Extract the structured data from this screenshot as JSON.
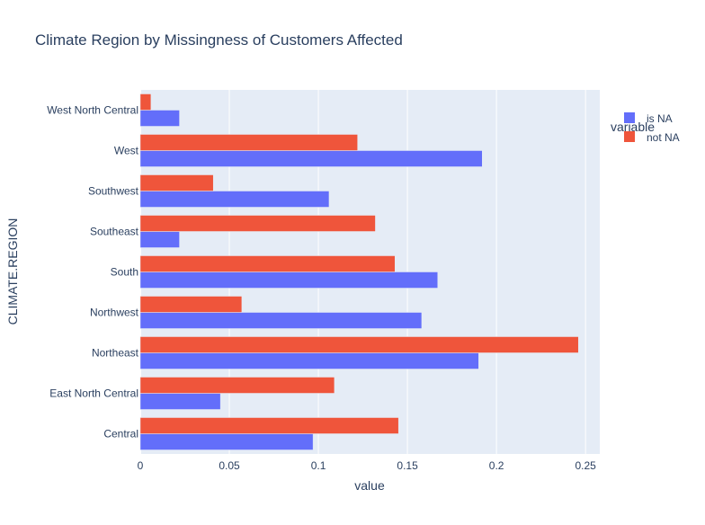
{
  "chart_data": {
    "type": "bar",
    "orientation": "horizontal",
    "barmode": "group",
    "title": "Climate Region by Missingness of Customers Affected",
    "xlabel": "value",
    "ylabel": "CLIMATE.REGION",
    "xlim": [
      0,
      0.258
    ],
    "xticks": [
      0,
      0.05,
      0.1,
      0.15,
      0.2,
      0.25
    ],
    "xtick_labels": [
      "0",
      "0.05",
      "0.1",
      "0.15",
      "0.2",
      "0.25"
    ],
    "grid": true,
    "legend": {
      "title": "variable",
      "position": "top-right"
    },
    "categories": [
      "Central",
      "East North Central",
      "Northeast",
      "Northwest",
      "South",
      "Southeast",
      "Southwest",
      "West",
      "West North Central"
    ],
    "series": [
      {
        "name": "is NA",
        "color": "#636efa",
        "values": [
          0.097,
          0.045,
          0.19,
          0.158,
          0.167,
          0.022,
          0.106,
          0.192,
          0.022
        ]
      },
      {
        "name": "not NA",
        "color": "#ef553b",
        "values": [
          0.145,
          0.109,
          0.246,
          0.057,
          0.143,
          0.132,
          0.041,
          0.122,
          0.006
        ]
      }
    ]
  }
}
